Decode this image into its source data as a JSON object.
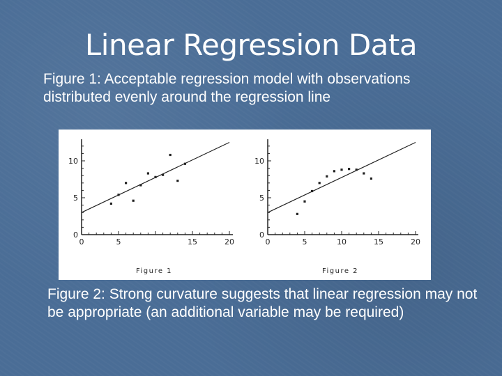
{
  "slide": {
    "title": "Linear Regression Data",
    "caption_1": "Figure 1:  Acceptable regression model with observations distributed evenly around the regression line",
    "caption_2": "Figure 2:  Strong curvature suggests that linear regression may not be appropriate (an additional variable may be required)"
  },
  "colors": {
    "background": "#4a6d96",
    "text": "#ffffff",
    "plot_ink": "#222222"
  },
  "chart_data": [
    {
      "type": "scatter",
      "title": "Figure 1",
      "xlim": [
        0,
        20
      ],
      "ylim": [
        0,
        10
      ],
      "x_ticks": [
        "0",
        "5",
        "15",
        "20"
      ],
      "x_tick_values": [
        0,
        5,
        15,
        20
      ],
      "y_ticks": [
        "0",
        "5",
        "10"
      ],
      "y_tick_values": [
        0,
        5,
        10
      ],
      "grid": false,
      "points": [
        {
          "x": 4,
          "y": 4.2
        },
        {
          "x": 5,
          "y": 5.4
        },
        {
          "x": 6,
          "y": 7.0
        },
        {
          "x": 7,
          "y": 4.6
        },
        {
          "x": 8,
          "y": 6.7
        },
        {
          "x": 9,
          "y": 8.3
        },
        {
          "x": 10,
          "y": 7.8
        },
        {
          "x": 11,
          "y": 8.1
        },
        {
          "x": 12,
          "y": 10.8
        },
        {
          "x": 13,
          "y": 7.3
        },
        {
          "x": 14,
          "y": 9.6
        }
      ],
      "regression_line": [
        {
          "x": 0,
          "y": 3.0
        },
        {
          "x": 20,
          "y": 12.5
        }
      ]
    },
    {
      "type": "scatter",
      "title": "Figure 2",
      "xlim": [
        0,
        20
      ],
      "ylim": [
        0,
        10
      ],
      "x_ticks": [
        "0",
        "5",
        "10",
        "15",
        "20"
      ],
      "x_tick_values": [
        0,
        5,
        10,
        15,
        20
      ],
      "y_ticks": [
        "0",
        "5",
        "10"
      ],
      "y_tick_values": [
        0,
        5,
        10
      ],
      "grid": false,
      "points": [
        {
          "x": 4,
          "y": 2.8
        },
        {
          "x": 5,
          "y": 4.5
        },
        {
          "x": 6,
          "y": 5.9
        },
        {
          "x": 7,
          "y": 7.0
        },
        {
          "x": 8,
          "y": 7.9
        },
        {
          "x": 9,
          "y": 8.6
        },
        {
          "x": 10,
          "y": 8.8
        },
        {
          "x": 11,
          "y": 8.9
        },
        {
          "x": 12,
          "y": 8.8
        },
        {
          "x": 13,
          "y": 8.3
        },
        {
          "x": 14,
          "y": 7.6
        }
      ],
      "regression_line": [
        {
          "x": 0,
          "y": 3.0
        },
        {
          "x": 20,
          "y": 12.5
        }
      ]
    }
  ]
}
